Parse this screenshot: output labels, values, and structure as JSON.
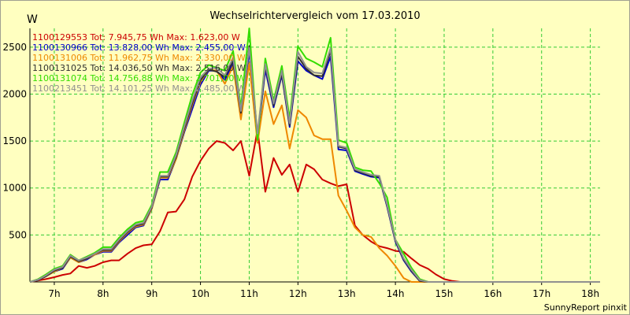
{
  "chart_data": {
    "type": "line",
    "title": "Wechselrichtervergleich vom 17.03.2010",
    "ylabel": "W",
    "xlabel": "",
    "footer": "SunnyReport pinxit",
    "ylim": [
      0,
      2700
    ],
    "yticks": [
      500,
      1000,
      1500,
      2000,
      2500
    ],
    "x_hour_range": [
      6.5,
      18.2
    ],
    "xticks": [
      {
        "hour": 7,
        "label": "7h"
      },
      {
        "hour": 8,
        "label": "8h"
      },
      {
        "hour": 9,
        "label": "9h"
      },
      {
        "hour": 10,
        "label": "10h"
      },
      {
        "hour": 11,
        "label": "11h"
      },
      {
        "hour": 12,
        "label": "12h"
      },
      {
        "hour": 13,
        "label": "13h"
      },
      {
        "hour": 14,
        "label": "14h"
      },
      {
        "hour": 15,
        "label": "15h"
      },
      {
        "hour": 16,
        "label": "16h"
      },
      {
        "hour": 17,
        "label": "17h"
      },
      {
        "hour": 18,
        "label": "18h"
      }
    ],
    "grid": true,
    "legend_position": "top-left",
    "x": [
      6.5,
      6.67,
      6.83,
      7.0,
      7.17,
      7.33,
      7.5,
      7.67,
      7.83,
      8.0,
      8.17,
      8.33,
      8.5,
      8.67,
      8.83,
      9.0,
      9.17,
      9.33,
      9.5,
      9.67,
      9.83,
      10.0,
      10.17,
      10.33,
      10.5,
      10.67,
      10.83,
      11.0,
      11.17,
      11.33,
      11.5,
      11.67,
      11.83,
      12.0,
      12.17,
      12.33,
      12.5,
      12.67,
      12.83,
      13.0,
      13.17,
      13.33,
      13.5,
      13.67,
      13.83,
      14.0,
      14.17,
      14.33,
      14.5,
      14.67,
      14.83,
      15.0,
      15.17,
      15.33,
      15.5,
      15.67,
      15.83,
      16.0,
      16.17,
      16.33,
      16.5,
      16.67,
      16.83,
      17.0,
      17.17,
      17.33,
      17.5,
      17.67,
      17.83,
      18.0,
      18.17,
      18.2
    ],
    "series": [
      {
        "name": "1100129553",
        "legend": "1100129553 Tot: 7.945,75 Wh Max: 1.623,00 W",
        "color": "#cc0000",
        "values": [
          0,
          15,
          30,
          50,
          75,
          90,
          170,
          150,
          170,
          210,
          230,
          230,
          300,
          360,
          390,
          400,
          540,
          740,
          750,
          880,
          1120,
          1290,
          1420,
          1500,
          1480,
          1400,
          1500,
          1130,
          1620,
          960,
          1320,
          1140,
          1250,
          960,
          1250,
          1200,
          1090,
          1050,
          1020,
          1040,
          600,
          500,
          430,
          380,
          360,
          330,
          320,
          250,
          180,
          140,
          80,
          30,
          10,
          0,
          0,
          0,
          0,
          0,
          0,
          0,
          0,
          0,
          0,
          0,
          0,
          0,
          0,
          0,
          0,
          0,
          0,
          0
        ]
      },
      {
        "name": "1100130966",
        "legend": "1100130966 Tot: 13.828,00 Wh Max: 2.455,00 W",
        "color": "#0000cc",
        "values": [
          0,
          20,
          60,
          110,
          140,
          260,
          210,
          240,
          290,
          320,
          320,
          420,
          500,
          580,
          600,
          780,
          1090,
          1090,
          1310,
          1600,
          1840,
          2100,
          2250,
          2250,
          2150,
          2330,
          1780,
          2450,
          1530,
          2260,
          1860,
          2200,
          1650,
          2350,
          2250,
          2200,
          2160,
          2400,
          1410,
          1400,
          1180,
          1150,
          1120,
          1110,
          800,
          430,
          230,
          110,
          10,
          0,
          0,
          0,
          0,
          0,
          0,
          0,
          0,
          0,
          0,
          0,
          0,
          0,
          0,
          0,
          0,
          0,
          0,
          0,
          0,
          0,
          0,
          0
        ]
      },
      {
        "name": "1100131006",
        "legend": "1100131006 Tot: 11.962,75 Wh Max: 2.330,00 W",
        "color": "#ee8800",
        "values": [
          0,
          20,
          60,
          110,
          150,
          260,
          210,
          250,
          290,
          330,
          330,
          430,
          520,
          590,
          610,
          780,
          1110,
          1110,
          1310,
          1620,
          1880,
          2130,
          2260,
          2250,
          2110,
          2300,
          1730,
          2330,
          1480,
          2030,
          1680,
          1880,
          1420,
          1830,
          1750,
          1560,
          1520,
          1520,
          920,
          760,
          580,
          500,
          480,
          360,
          280,
          170,
          40,
          0,
          0,
          0,
          0,
          0,
          0,
          0,
          0,
          0,
          0,
          0,
          0,
          0,
          0,
          0,
          0,
          0,
          0,
          0,
          0,
          0,
          0,
          0,
          0,
          0
        ]
      },
      {
        "name": "1100131025",
        "legend": "1100131025 Tot: 14.036,50 Wh Max: 2.516,00 W",
        "color": "#303030",
        "values": [
          0,
          20,
          60,
          120,
          150,
          270,
          220,
          250,
          300,
          340,
          340,
          440,
          530,
          600,
          620,
          790,
          1120,
          1120,
          1330,
          1640,
          1900,
          2150,
          2260,
          2240,
          2180,
          2360,
          1800,
          2510,
          1550,
          2300,
          1880,
          2220,
          1670,
          2400,
          2270,
          2200,
          2190,
          2460,
          1440,
          1420,
          1190,
          1160,
          1130,
          1120,
          810,
          440,
          240,
          120,
          10,
          0,
          0,
          0,
          0,
          0,
          0,
          0,
          0,
          0,
          0,
          0,
          0,
          0,
          0,
          0,
          0,
          0,
          0,
          0,
          0,
          0,
          0,
          0
        ]
      },
      {
        "name": "1100131074",
        "legend": "1100131074 Tot: 14.756,88 Wh Max: 2.701,00 W",
        "color": "#33dd00",
        "values": [
          0,
          30,
          80,
          140,
          170,
          290,
          230,
          270,
          310,
          370,
          370,
          470,
          560,
          630,
          650,
          820,
          1170,
          1170,
          1380,
          1700,
          1990,
          2230,
          2310,
          2280,
          2250,
          2460,
          1860,
          2700,
          1510,
          2380,
          1930,
          2300,
          1740,
          2510,
          2380,
          2340,
          2290,
          2600,
          1510,
          1480,
          1220,
          1190,
          1180,
          1050,
          900,
          450,
          300,
          150,
          30,
          0,
          0,
          0,
          0,
          0,
          0,
          0,
          0,
          0,
          0,
          0,
          0,
          0,
          0,
          0,
          0,
          0,
          0,
          0,
          0,
          0,
          0,
          0
        ]
      },
      {
        "name": "1100213451",
        "legend": "1100213451 Tot: 14.101,25 Wh Max: 2.485,00 W",
        "color": "#909090",
        "values": [
          0,
          25,
          70,
          130,
          160,
          280,
          230,
          260,
          300,
          350,
          350,
          450,
          540,
          610,
          630,
          800,
          1130,
          1130,
          1350,
          1660,
          1930,
          2180,
          2270,
          2280,
          2200,
          2390,
          1820,
          2490,
          1580,
          2320,
          1900,
          2250,
          1690,
          2450,
          2290,
          2230,
          2220,
          2490,
          1450,
          1430,
          1200,
          1170,
          1140,
          1130,
          820,
          450,
          250,
          130,
          20,
          0,
          0,
          0,
          0,
          0,
          0,
          0,
          0,
          0,
          0,
          0,
          0,
          0,
          0,
          0,
          0,
          0,
          0,
          0,
          0,
          0,
          0,
          0
        ]
      }
    ]
  }
}
